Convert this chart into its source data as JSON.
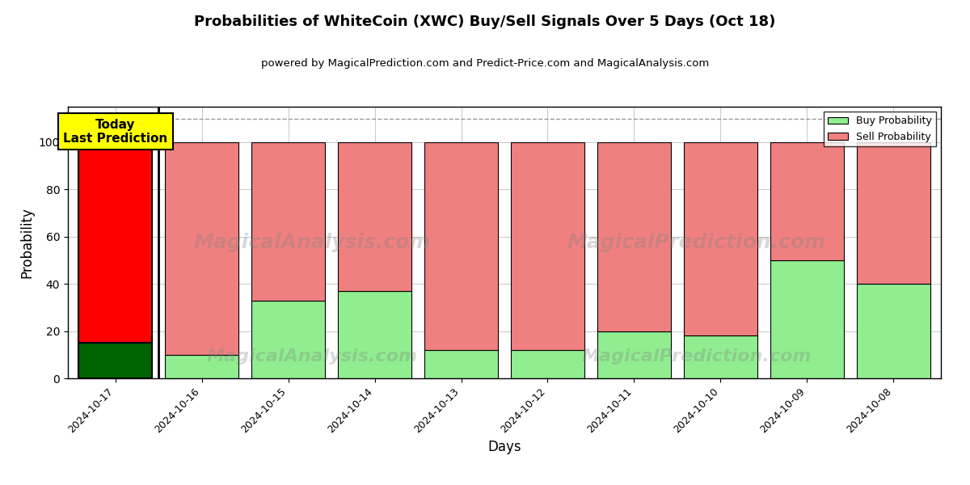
{
  "title": "Probabilities of WhiteCoin (XWC) Buy/Sell Signals Over 5 Days (Oct 18)",
  "subtitle": "powered by MagicalPrediction.com and Predict-Price.com and MagicalAnalysis.com",
  "xlabel": "Days",
  "ylabel": "Probability",
  "dates": [
    "2024-10-17",
    "2024-10-16",
    "2024-10-15",
    "2024-10-14",
    "2024-10-13",
    "2024-10-12",
    "2024-10-11",
    "2024-10-10",
    "2024-10-09",
    "2024-10-08"
  ],
  "buy_values": [
    15,
    10,
    33,
    37,
    12,
    12,
    20,
    18,
    50,
    40
  ],
  "sell_values": [
    85,
    90,
    67,
    63,
    88,
    88,
    80,
    82,
    50,
    60
  ],
  "buy_color_today": "#006400",
  "sell_color_today": "#FF0000",
  "buy_color_normal": "#90EE90",
  "sell_color_normal": "#F08080",
  "today_annotation_text": "Today\nLast Prediction",
  "today_annotation_bg": "#FFFF00",
  "legend_buy_label": "Buy Probability",
  "legend_sell_label": "Sell Probability",
  "ylim": [
    0,
    115
  ],
  "yticks": [
    0,
    20,
    40,
    60,
    80,
    100
  ],
  "dashed_line_y": 110,
  "watermark_text1": "MagicalAnalysis.com",
  "watermark_text2": "MagicalPrediction.com",
  "bar_width": 0.85
}
